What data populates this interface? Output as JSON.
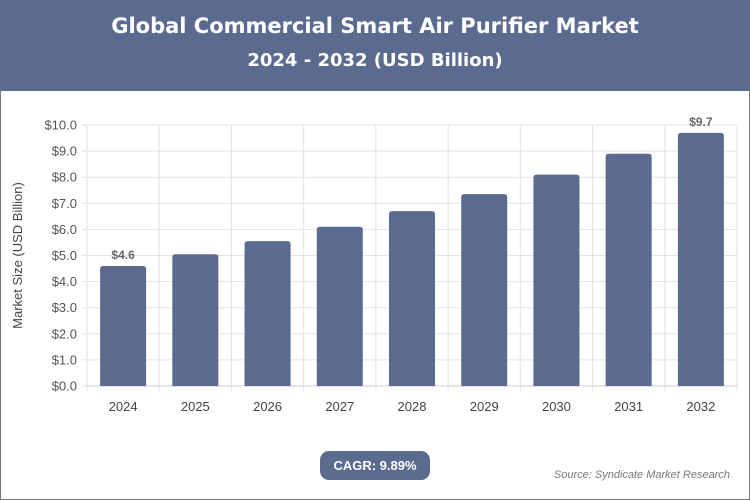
{
  "header": {
    "title": "Global Commercial Smart Air Purifier Market",
    "subtitle": "2024 - 2032 (USD Billion)"
  },
  "chart_data": {
    "type": "bar",
    "title": "Global Commercial Smart Air Purifier Market 2024 - 2032 (USD Billion)",
    "xlabel": "",
    "ylabel": "Market Size (USD Billion)",
    "categories": [
      "2024",
      "2025",
      "2026",
      "2027",
      "2028",
      "2029",
      "2030",
      "2031",
      "2032"
    ],
    "values": [
      4.6,
      5.05,
      5.55,
      6.1,
      6.7,
      7.35,
      8.1,
      8.9,
      9.7
    ],
    "data_labels": {
      "0": "$4.6",
      "8": "$9.7"
    },
    "ylim": [
      0,
      10
    ],
    "yticks": [
      "$0.0",
      "$1.0",
      "$2.0",
      "$3.0",
      "$4.0",
      "$5.0",
      "$6.0",
      "$7.0",
      "$8.0",
      "$9.0",
      "$10.0"
    ],
    "grid": true,
    "bar_color": "#5b6a8f"
  },
  "footer": {
    "cagr": "CAGR: 9.89%",
    "source": "Source: Syndicate Market Research"
  }
}
